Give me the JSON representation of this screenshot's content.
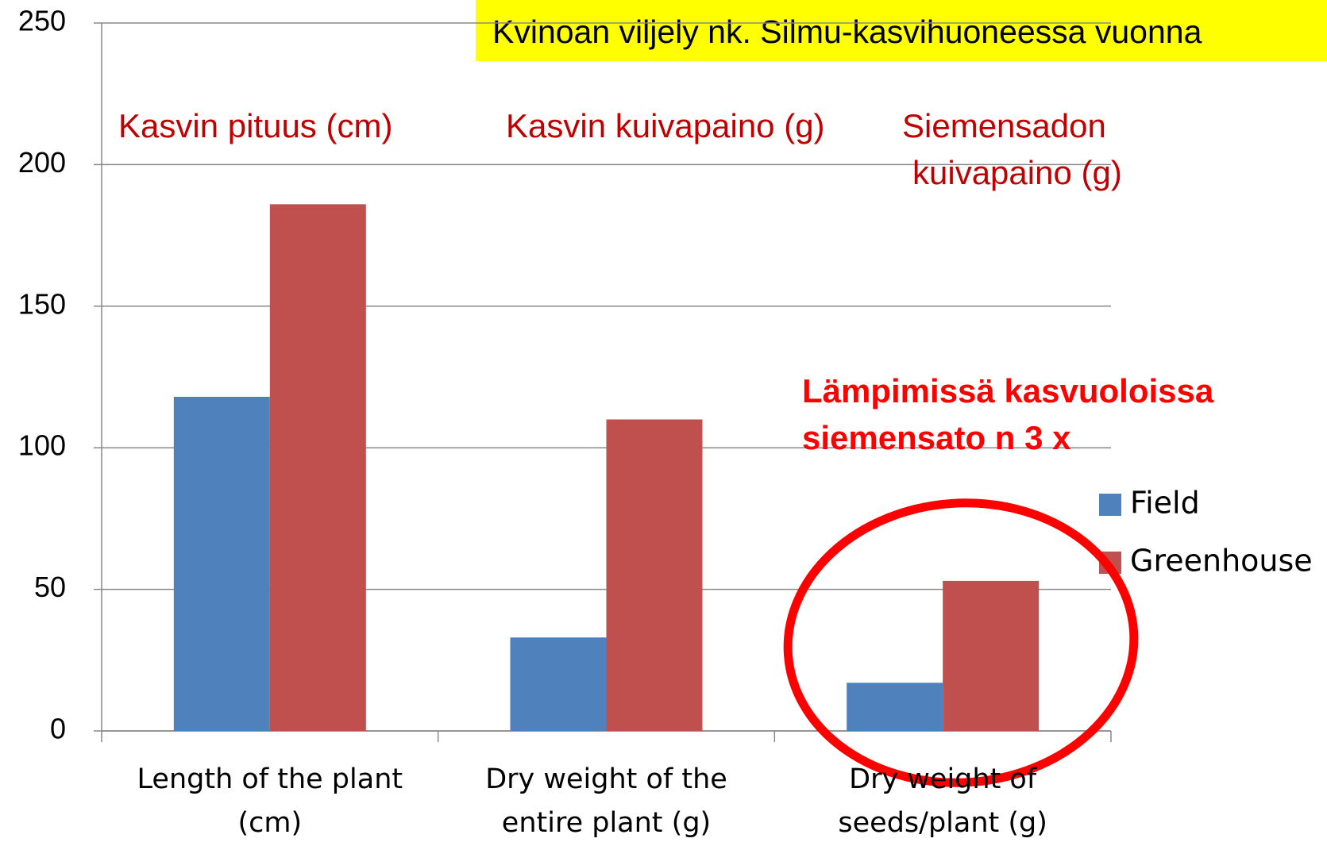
{
  "chart_data": {
    "type": "bar",
    "title": "Kvinoan viljely nk. Silmu-kasvihuoneessa vuonna",
    "annotations": [
      "Kasvin pituus (cm)",
      "Kasvin kuivapaino (g)",
      "Siemensadon",
      "kuivapaino (g)",
      "Lämpimissä kasvuoloissa",
      "siemensato n 3 x"
    ],
    "categories": [
      "Length of the plant (cm)",
      "Dry weight of the entire plant (g)",
      "Dry weight of seeds/plant (g)"
    ],
    "series": [
      {
        "name": "Field",
        "color": "#4f81bd",
        "values": [
          118,
          33,
          17
        ]
      },
      {
        "name": "Greenhouse",
        "color": "#c0504d",
        "values": [
          186,
          110,
          53
        ]
      }
    ],
    "ylim": [
      0,
      250
    ],
    "yticks": [
      0,
      50,
      100,
      150,
      200,
      250
    ],
    "grid": true,
    "legend": "right"
  }
}
